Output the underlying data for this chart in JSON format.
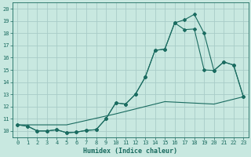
{
  "xlabel": "Humidex (Indice chaleur)",
  "bg_color": "#c8e8e0",
  "grid_color": "#a8ccc8",
  "line_color": "#1a6b60",
  "xlim": [
    -0.5,
    23.5
  ],
  "ylim": [
    9.5,
    20.5
  ],
  "xticks": [
    0,
    1,
    2,
    3,
    4,
    5,
    6,
    7,
    8,
    9,
    10,
    11,
    12,
    13,
    14,
    15,
    16,
    17,
    18,
    19,
    20,
    21,
    22,
    23
  ],
  "yticks": [
    10,
    11,
    12,
    13,
    14,
    15,
    16,
    17,
    18,
    19,
    20
  ],
  "line1_x": [
    0,
    1,
    2,
    3,
    4,
    5,
    6,
    7,
    8,
    9,
    10,
    11,
    12,
    13,
    14,
    15,
    16,
    17,
    18,
    19,
    20,
    21,
    22,
    23
  ],
  "line1_y": [
    10.5,
    10.4,
    10.0,
    10.0,
    10.1,
    9.85,
    9.9,
    10.05,
    10.1,
    11.0,
    12.3,
    12.2,
    13.0,
    14.4,
    16.6,
    16.7,
    18.85,
    19.1,
    19.55,
    18.0,
    14.95,
    15.65,
    15.4,
    12.8
  ],
  "line2_x": [
    0,
    1,
    2,
    3,
    4,
    5,
    6,
    7,
    8,
    9,
    10,
    11,
    12,
    13,
    14,
    15,
    16,
    17,
    18,
    19,
    20,
    21,
    22,
    23
  ],
  "line2_y": [
    10.5,
    10.4,
    10.0,
    10.0,
    10.1,
    9.85,
    9.9,
    10.05,
    10.1,
    11.0,
    12.3,
    12.2,
    13.0,
    14.4,
    16.6,
    16.7,
    18.85,
    18.3,
    18.35,
    15.0,
    14.95,
    15.65,
    15.4,
    12.8
  ],
  "line3_x": [
    0,
    5,
    10,
    15,
    20,
    23
  ],
  "line3_y": [
    10.5,
    10.5,
    11.4,
    12.4,
    12.2,
    12.8
  ]
}
